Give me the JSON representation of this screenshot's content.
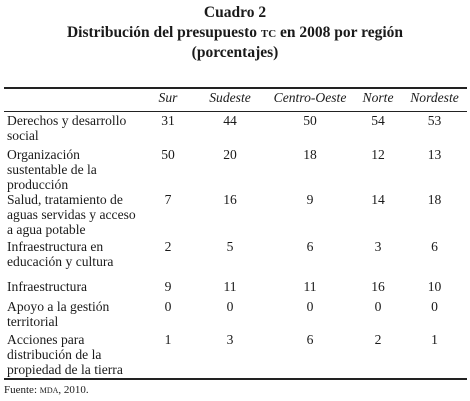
{
  "titles": {
    "line1": "Cuadro 2",
    "line2_pre": "Distribución del presupuesto ",
    "line2_sc": "tc",
    "line2_post": " en 2008 por región",
    "line3": "(porcentajes)"
  },
  "table": {
    "headers": [
      "Sur",
      "Sudeste",
      "Centro-Oeste",
      "Norte",
      "Nordeste"
    ],
    "rows": [
      {
        "label": "Derechos y desarrollo social",
        "values": [
          "31",
          "44",
          "50",
          "54",
          "53"
        ]
      },
      {
        "label": "Organización sustentable de la producción",
        "values": [
          "50",
          "20",
          "18",
          "12",
          "13"
        ]
      },
      {
        "label": "Salud, tratamiento de aguas servidas y acceso a agua potable",
        "values": [
          "7",
          "16",
          "9",
          "14",
          "18"
        ]
      },
      {
        "label": "Infraestructura en educación y cultura",
        "values": [
          "2",
          "5",
          "6",
          "3",
          "6"
        ]
      },
      {
        "label": "Infraestructura",
        "values": [
          "9",
          "11",
          "11",
          "16",
          "10"
        ]
      },
      {
        "label": "Apoyo a la gestión territorial",
        "values": [
          "0",
          "0",
          "0",
          "0",
          "0"
        ]
      },
      {
        "label": "Acciones para distribución de la propiedad de la tierra",
        "values": [
          "1",
          "3",
          "6",
          "2",
          "1"
        ]
      }
    ]
  },
  "source": {
    "prefix": "Fuente: ",
    "sc": "mda",
    "suffix": ", 2010."
  }
}
